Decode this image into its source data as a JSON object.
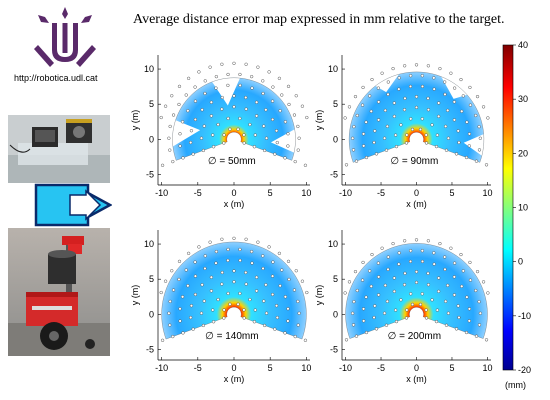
{
  "title": "Average distance error map expressed in mm relative to the target.",
  "logo_url": "http://robotica.udl.cat",
  "colors": {
    "logo": "#5a2a6a",
    "arrow_fill": "#27c4f2",
    "arrow_stroke": "#0a2a6a"
  },
  "chart_data": [
    {
      "type": "heatmap",
      "label": "∅ = 50mm",
      "diameter_mm": 50,
      "x_ticks": [
        -10,
        -5,
        0,
        5,
        10
      ],
      "y_ticks": [
        10,
        5,
        0,
        -5
      ],
      "xlabel": "x (m)",
      "ylabel": "y (m)",
      "xlim": [
        -10.5,
        10.5
      ],
      "ylim": [
        -6.5,
        12
      ],
      "covered_region": "partial ring with gaps, max range ~8.5 m",
      "error_level_mm": {
        "near_center": 40,
        "mid": 0,
        "outer": -5
      }
    },
    {
      "type": "heatmap",
      "label": "∅ = 90mm",
      "diameter_mm": 90,
      "x_ticks": [
        -10,
        -5,
        0,
        5,
        10
      ],
      "y_ticks": [
        10,
        5,
        0,
        -5
      ],
      "xlabel": "x (m)",
      "ylabel": "y (m)",
      "xlim": [
        -10.5,
        10.5
      ],
      "ylim": [
        -6.5,
        12
      ],
      "covered_region": "partial ring with notches, max range ~9.5 m",
      "error_level_mm": {
        "near_center": 40,
        "mid": -2,
        "outer": -5
      }
    },
    {
      "type": "heatmap",
      "label": "∅ = 140mm",
      "diameter_mm": 140,
      "x_ticks": [
        -10,
        -5,
        0,
        5,
        10
      ],
      "y_ticks": [
        10,
        5,
        0,
        -5
      ],
      "xlabel": "x (m)",
      "ylabel": "y (m)",
      "xlim": [
        -10.5,
        10.5
      ],
      "ylim": [
        -6.5,
        12
      ],
      "covered_region": "full fan, max range ~10 m",
      "error_level_mm": {
        "near_center": 40,
        "mid": 0,
        "outer": -5
      }
    },
    {
      "type": "heatmap",
      "label": "∅ = 200mm",
      "diameter_mm": 200,
      "x_ticks": [
        -10,
        -5,
        0,
        5,
        10
      ],
      "y_ticks": [
        10,
        5,
        0,
        -5
      ],
      "xlabel": "x (m)",
      "ylabel": "y (m)",
      "xlim": [
        -10.5,
        10.5
      ],
      "ylim": [
        -6.5,
        12
      ],
      "covered_region": "full fan, max range ~10 m",
      "error_level_mm": {
        "near_center": 40,
        "mid": 0,
        "outer": -5
      }
    }
  ],
  "colorbar": {
    "ticks": [
      40,
      30,
      20,
      10,
      0,
      -10,
      -20
    ],
    "unit": "(mm)",
    "min": -20,
    "max": 40
  }
}
